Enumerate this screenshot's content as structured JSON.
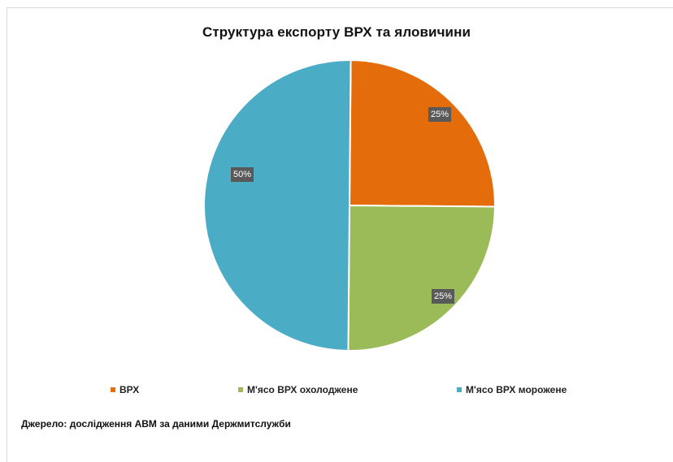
{
  "chart_data": {
    "type": "pie",
    "title": "Структура експорту ВРХ та яловичини",
    "categories": [
      "ВРХ",
      "М'ясо ВРХ охолоджене",
      "М'ясо ВРХ морожене"
    ],
    "values": [
      25,
      25,
      50
    ],
    "value_labels": [
      "25%",
      "25%",
      "50%"
    ],
    "colors": [
      "#e46c0a",
      "#9bbb59",
      "#4bacc6"
    ],
    "legend_position": "bottom",
    "start_angle_deg": 0,
    "direction": "clockwise"
  },
  "chart": {
    "title": "Структура експорту ВРХ та яловичини",
    "labels": {
      "slice1": "25%",
      "slice2": "25%",
      "slice3": "50%"
    },
    "legend": [
      {
        "label": "ВРХ",
        "color": "#e46c0a"
      },
      {
        "label": "М'ясо ВРХ охолоджене",
        "color": "#9bbb59"
      },
      {
        "label": "М'ясо ВРХ морожене",
        "color": "#4bacc6"
      }
    ],
    "source": "Джерело: дослідження АВМ за даними Держмитслужби"
  }
}
